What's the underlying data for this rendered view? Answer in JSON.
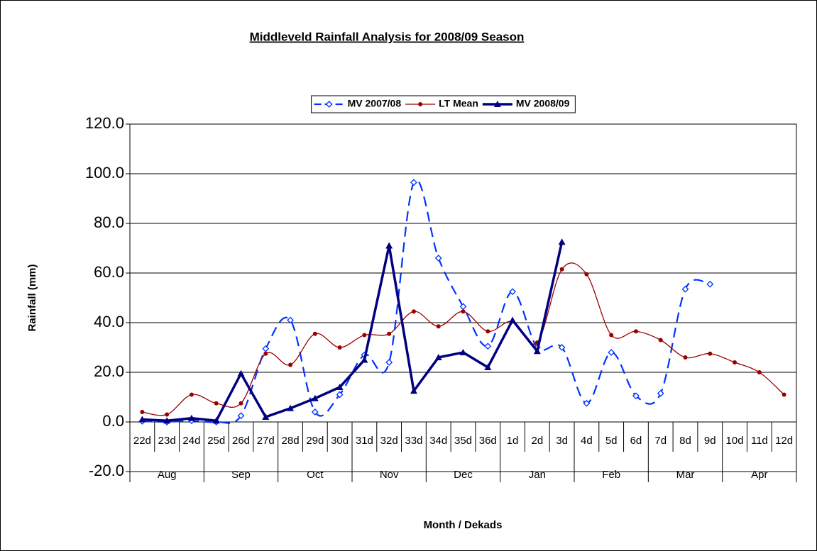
{
  "chart_data": {
    "type": "line",
    "title": "Middleveld Rainfall Analysis for 2008/09 Season",
    "y_label": "Rainfall (mm)",
    "x_label": "Month / Dekads",
    "categories": [
      "22d",
      "23d",
      "24d",
      "25d",
      "26d",
      "27d",
      "28d",
      "29d",
      "30d",
      "31d",
      "32d",
      "33d",
      "34d",
      "35d",
      "36d",
      "1d",
      "2d",
      "3d",
      "4d",
      "5d",
      "6d",
      "7d",
      "8d",
      "9d",
      "10d",
      "11d",
      "12d"
    ],
    "groups": [
      "Aug",
      "Sep",
      "Oct",
      "Nov",
      "Dec",
      "Jan",
      "Feb",
      "Mar",
      "Apr"
    ],
    "ylim": [
      -20,
      120
    ],
    "yticks": [
      {
        "value": -20,
        "label": "-20.0"
      },
      {
        "value": 0,
        "label": "0.0"
      },
      {
        "value": 20,
        "label": "20.0"
      },
      {
        "value": 40,
        "label": "40.0"
      },
      {
        "value": 60,
        "label": "60.0"
      },
      {
        "value": 80,
        "label": "80.0"
      },
      {
        "value": 100,
        "label": "100.0"
      },
      {
        "value": 120,
        "label": "120.0"
      }
    ],
    "grid": true,
    "legend": "top",
    "series": [
      {
        "name": "MV 2007/08",
        "color": "#0033ff",
        "dash": true,
        "smooth": true,
        "marker": "diamond",
        "values": [
          0.3,
          0,
          0.5,
          0,
          2.5,
          29.5,
          41,
          4,
          11,
          27,
          24,
          96.5,
          66,
          46.5,
          30.5,
          52.5,
          30,
          30,
          7.5,
          28,
          10.5,
          11.5,
          53.5,
          55.5,
          null,
          null,
          null
        ]
      },
      {
        "name": "LT Mean",
        "color": "#990000",
        "dash": false,
        "smooth": true,
        "marker": "circle",
        "values": [
          4,
          3,
          11,
          7.5,
          7.5,
          27.5,
          23,
          35.5,
          30,
          35,
          35.5,
          44.5,
          38.5,
          44.5,
          36.5,
          40.5,
          32,
          61.5,
          59.5,
          35,
          36.5,
          33,
          26,
          27.5,
          24,
          20,
          11
        ]
      },
      {
        "name": "MV 2008/09",
        "color": "#000080",
        "dash": false,
        "smooth": false,
        "marker": "triangle",
        "values": [
          1,
          0.5,
          1.5,
          0.5,
          19.5,
          2,
          5.5,
          9.5,
          14,
          25,
          71,
          12.5,
          26,
          28,
          22,
          41,
          28.5,
          72.5,
          null,
          null,
          null,
          null,
          null,
          null,
          null,
          null,
          null
        ]
      }
    ]
  }
}
